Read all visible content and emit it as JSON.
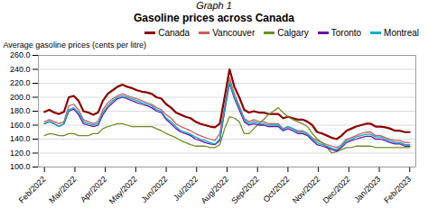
{
  "chart_data": {
    "type": "line",
    "title": "Graph 1",
    "subtitle": "Gasoline prices across Canada",
    "ylabel": "Average gasoline prices (cents per litre)",
    "x": [
      0,
      0.16,
      0.32,
      0.48,
      0.64,
      0.8,
      0.96,
      1.12,
      1.28,
      1.44,
      1.6,
      1.76,
      1.92,
      2.08,
      2.24,
      2.4,
      2.56,
      2.72,
      2.88,
      3.04,
      3.2,
      3.36,
      3.52,
      3.68,
      3.84,
      4,
      4.16,
      4.32,
      4.48,
      4.64,
      4.8,
      4.96,
      5.12,
      5.28,
      5.44,
      5.6,
      5.76,
      5.92,
      6.08,
      6.24,
      6.4,
      6.56,
      6.72,
      6.88,
      7.04,
      7.2,
      7.36,
      7.52,
      7.68,
      7.84,
      8,
      8.16,
      8.32,
      8.48,
      8.64,
      8.8,
      8.96,
      9.12,
      9.28,
      9.44,
      9.6,
      9.76,
      9.92,
      10.08,
      10.24,
      10.4,
      10.56,
      10.72,
      10.88,
      11.04,
      11.2,
      11.36,
      11.52,
      11.68,
      11.84,
      12
    ],
    "xlim": [
      -0.2,
      12.2
    ],
    "xticks": [
      {
        "value": 0,
        "label": "Feb/2022"
      },
      {
        "value": 1,
        "label": "Mar/2022"
      },
      {
        "value": 2,
        "label": "Apr/2022"
      },
      {
        "value": 3,
        "label": "May/2022"
      },
      {
        "value": 4,
        "label": "Jun/2022"
      },
      {
        "value": 5,
        "label": "Jul/2022"
      },
      {
        "value": 6,
        "label": "Aug/2022"
      },
      {
        "value": 7,
        "label": "Sep/2022"
      },
      {
        "value": 8,
        "label": "Oct/2022"
      },
      {
        "value": 9,
        "label": "Nov/2022"
      },
      {
        "value": 10,
        "label": "Dec/2022"
      },
      {
        "value": 11,
        "label": "Jan/2023"
      },
      {
        "value": 12,
        "label": "Feb/2023"
      }
    ],
    "ylim": [
      100.0,
      260.0
    ],
    "yticks": [
      {
        "value": 100,
        "label": "100.0"
      },
      {
        "value": 120,
        "label": "120.0"
      },
      {
        "value": 140,
        "label": "140.0"
      },
      {
        "value": 160,
        "label": "160.0"
      },
      {
        "value": 180,
        "label": "180.0"
      },
      {
        "value": 200,
        "label": "200.0"
      },
      {
        "value": 220,
        "label": "220.0"
      },
      {
        "value": 240,
        "label": "240.0"
      },
      {
        "value": 260,
        "label": "260.0"
      }
    ],
    "grid": true,
    "legend": "upper right",
    "series": [
      {
        "name": "Canada",
        "color": "#8B0000",
        "values": [
          179,
          182,
          178,
          176,
          179,
          200,
          202,
          195,
          180,
          178,
          175,
          178,
          195,
          205,
          210,
          215,
          218,
          215,
          213,
          210,
          208,
          207,
          205,
          200,
          198,
          190,
          185,
          178,
          175,
          172,
          170,
          165,
          162,
          160,
          158,
          157,
          162,
          200,
          240,
          215,
          200,
          182,
          178,
          180,
          178,
          178,
          176,
          176,
          176,
          170,
          172,
          170,
          168,
          168,
          165,
          160,
          150,
          148,
          145,
          142,
          140,
          145,
          152,
          155,
          158,
          160,
          162,
          162,
          158,
          158,
          157,
          155,
          152,
          152,
          150,
          150
        ]
      },
      {
        "name": "Vancouver",
        "color": "#CD5C5C",
        "values": [
          165,
          168,
          165,
          162,
          165,
          188,
          190,
          182,
          168,
          165,
          162,
          165,
          182,
          192,
          198,
          202,
          205,
          202,
          200,
          198,
          195,
          192,
          190,
          185,
          182,
          175,
          170,
          162,
          158,
          155,
          152,
          148,
          145,
          142,
          140,
          138,
          148,
          188,
          228,
          205,
          188,
          170,
          165,
          168,
          165,
          165,
          162,
          162,
          162,
          155,
          158,
          155,
          152,
          152,
          148,
          142,
          138,
          135,
          132,
          130,
          128,
          132,
          140,
          142,
          145,
          148,
          150,
          150,
          145,
          145,
          142,
          140,
          138,
          138,
          135,
          135
        ]
      },
      {
        "name": "Calgary",
        "color": "#6B8E23",
        "values": [
          145,
          148,
          147,
          145,
          145,
          148,
          148,
          145,
          145,
          145,
          148,
          148,
          155,
          158,
          160,
          162,
          162,
          160,
          158,
          158,
          158,
          158,
          158,
          155,
          152,
          148,
          145,
          142,
          138,
          135,
          132,
          130,
          130,
          130,
          128,
          128,
          132,
          155,
          172,
          170,
          165,
          148,
          148,
          155,
          162,
          168,
          175,
          180,
          185,
          178,
          172,
          168,
          165,
          162,
          158,
          148,
          140,
          135,
          128,
          120,
          122,
          125,
          128,
          128,
          130,
          130,
          130,
          130,
          128,
          128,
          128,
          128,
          128,
          128,
          128,
          128
        ]
      },
      {
        "name": "Toronto",
        "color": "#6A0DAD",
        "values": [
          162,
          165,
          162,
          158,
          162,
          180,
          183,
          175,
          162,
          160,
          158,
          160,
          175,
          185,
          192,
          198,
          200,
          198,
          195,
          192,
          190,
          188,
          185,
          180,
          178,
          168,
          162,
          155,
          150,
          148,
          145,
          140,
          138,
          135,
          133,
          132,
          138,
          180,
          220,
          198,
          182,
          165,
          160,
          162,
          160,
          160,
          158,
          158,
          158,
          152,
          155,
          152,
          148,
          148,
          145,
          138,
          132,
          130,
          128,
          125,
          123,
          128,
          135,
          138,
          140,
          142,
          144,
          144,
          140,
          140,
          138,
          135,
          133,
          133,
          130,
          130
        ]
      },
      {
        "name": "Montreal",
        "color": "#00B0C0",
        "values": [
          162,
          165,
          162,
          158,
          162,
          182,
          185,
          178,
          165,
          162,
          160,
          162,
          178,
          188,
          195,
          200,
          202,
          200,
          198,
          195,
          192,
          190,
          188,
          182,
          180,
          170,
          165,
          158,
          152,
          150,
          147,
          143,
          140,
          138,
          135,
          133,
          140,
          182,
          222,
          200,
          185,
          168,
          162,
          165,
          162,
          162,
          160,
          160,
          160,
          154,
          158,
          155,
          150,
          150,
          147,
          140,
          135,
          132,
          130,
          127,
          125,
          130,
          138,
          140,
          143,
          145,
          147,
          147,
          143,
          143,
          140,
          138,
          135,
          135,
          132,
          132
        ]
      }
    ]
  }
}
